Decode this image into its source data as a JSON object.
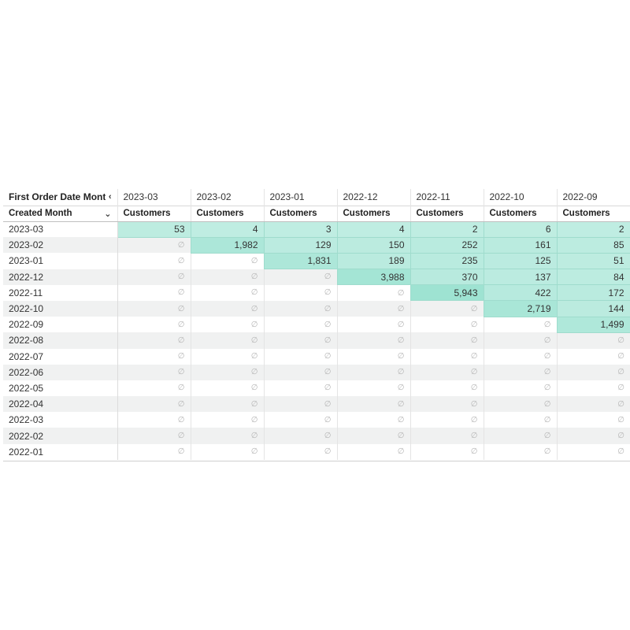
{
  "header": {
    "pivot_label": "First Order Date Month",
    "row_label": "Created Month",
    "measure": "Customers",
    "null_symbol": "∅",
    "columns": [
      "2023-03",
      "2023-02",
      "2023-01",
      "2022-12",
      "2022-11",
      "2022-10",
      "2022-09"
    ]
  },
  "rows": [
    {
      "label": "2023-03",
      "values": [
        53,
        4,
        3,
        4,
        2,
        6,
        2
      ]
    },
    {
      "label": "2023-02",
      "values": [
        null,
        1982,
        129,
        150,
        252,
        161,
        85
      ]
    },
    {
      "label": "2023-01",
      "values": [
        null,
        null,
        1831,
        189,
        235,
        125,
        51
      ]
    },
    {
      "label": "2022-12",
      "values": [
        null,
        null,
        null,
        3988,
        370,
        137,
        84
      ]
    },
    {
      "label": "2022-11",
      "values": [
        null,
        null,
        null,
        null,
        5943,
        422,
        172
      ]
    },
    {
      "label": "2022-10",
      "values": [
        null,
        null,
        null,
        null,
        null,
        2719,
        144
      ]
    },
    {
      "label": "2022-09",
      "values": [
        null,
        null,
        null,
        null,
        null,
        null,
        1499
      ]
    },
    {
      "label": "2022-08",
      "values": [
        null,
        null,
        null,
        null,
        null,
        null,
        null
      ]
    },
    {
      "label": "2022-07",
      "values": [
        null,
        null,
        null,
        null,
        null,
        null,
        null
      ]
    },
    {
      "label": "2022-06",
      "values": [
        null,
        null,
        null,
        null,
        null,
        null,
        null
      ]
    },
    {
      "label": "2022-05",
      "values": [
        null,
        null,
        null,
        null,
        null,
        null,
        null
      ]
    },
    {
      "label": "2022-04",
      "values": [
        null,
        null,
        null,
        null,
        null,
        null,
        null
      ]
    },
    {
      "label": "2022-03",
      "values": [
        null,
        null,
        null,
        null,
        null,
        null,
        null
      ]
    },
    {
      "label": "2022-02",
      "values": [
        null,
        null,
        null,
        null,
        null,
        null,
        null
      ]
    },
    {
      "label": "2022-01",
      "values": [
        null,
        null,
        null,
        null,
        null,
        null,
        null
      ]
    }
  ],
  "colors": {
    "heat_low": "#dcf5ef",
    "heat_high": "#9ee3d2",
    "null_text": "#b5b5b5"
  }
}
